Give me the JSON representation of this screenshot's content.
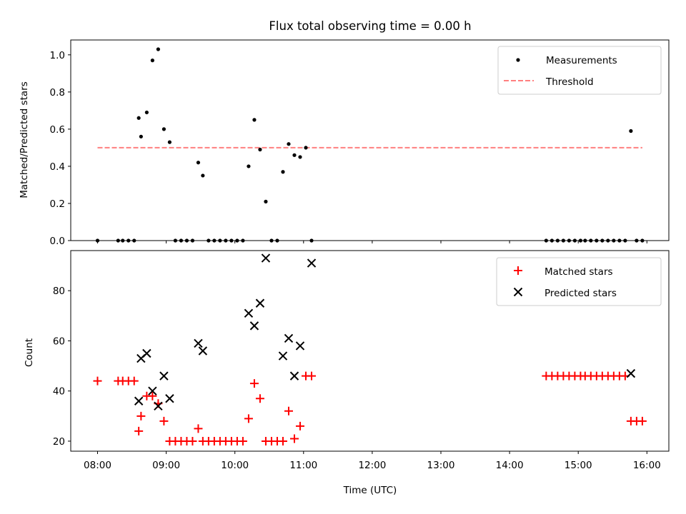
{
  "title": "Flux total observing time = 0.00 h",
  "chart_data": [
    {
      "type": "scatter",
      "ylabel": "Matched/Predicted stars",
      "ylim": [
        0,
        1.08
      ],
      "yticks": [
        "0.0",
        "0.2",
        "0.4",
        "0.6",
        "0.8",
        "1.0"
      ],
      "legend_placement": "top-right",
      "series": [
        {
          "name": "Measurements",
          "color": "#000000",
          "marker": "dot",
          "x": [
            "08:00",
            "08:18",
            "08:22",
            "08:27",
            "08:32",
            "08:36",
            "08:38",
            "08:43",
            "08:48",
            "08:53",
            "08:58",
            "09:03",
            "09:08",
            "09:13",
            "09:18",
            "09:23",
            "09:28",
            "09:32",
            "09:37",
            "09:42",
            "09:47",
            "09:52",
            "09:57",
            "10:02",
            "10:07",
            "10:12",
            "10:17",
            "10:22",
            "10:27",
            "10:32",
            "10:37",
            "10:42",
            "10:47",
            "10:52",
            "10:57",
            "11:02",
            "11:07",
            "14:32",
            "14:37",
            "14:42",
            "14:47",
            "14:52",
            "14:57",
            "15:02",
            "15:06",
            "15:11",
            "15:16",
            "15:21",
            "15:26",
            "15:31",
            "15:36",
            "15:41",
            "15:46",
            "15:51",
            "15:56"
          ],
          "values": [
            0.0,
            0.0,
            0.0,
            0.0,
            0.0,
            0.66,
            0.56,
            0.69,
            0.97,
            1.03,
            0.6,
            0.53,
            0.0,
            0.0,
            0.0,
            0.0,
            0.42,
            0.35,
            0.0,
            0.0,
            0.0,
            0.0,
            0.0,
            0.0,
            0.0,
            0.4,
            0.65,
            0.49,
            0.21,
            0.0,
            0.0,
            0.37,
            0.52,
            0.46,
            0.45,
            0.5,
            0.0,
            0.0,
            0.0,
            0.0,
            0.0,
            0.0,
            0.0,
            0.0,
            0.0,
            0.0,
            0.0,
            0.0,
            0.0,
            0.0,
            0.0,
            0.0,
            0.59,
            0.0,
            0.0
          ]
        },
        {
          "name": "Threshold",
          "color": "#ff7f7f",
          "linestyle": "dashed",
          "x": [
            "08:00",
            "15:56"
          ],
          "values": [
            0.5,
            0.5
          ]
        }
      ]
    },
    {
      "type": "scatter",
      "ylabel": "Count",
      "xlabel": "Time (UTC)",
      "ylim": [
        16,
        96
      ],
      "yticks": [
        "20",
        "40",
        "60",
        "80"
      ],
      "xticks": [
        "08:00",
        "09:00",
        "10:00",
        "11:00",
        "12:00",
        "13:00",
        "14:00",
        "15:00",
        "16:00"
      ],
      "legend_placement": "top-right",
      "series": [
        {
          "name": "Matched stars",
          "color": "#ff0000",
          "marker": "plus",
          "x": [
            "08:00",
            "08:18",
            "08:22",
            "08:27",
            "08:32",
            "08:36",
            "08:38",
            "08:43",
            "08:48",
            "08:53",
            "08:58",
            "09:03",
            "09:08",
            "09:13",
            "09:18",
            "09:23",
            "09:28",
            "09:32",
            "09:37",
            "09:42",
            "09:47",
            "09:52",
            "09:57",
            "10:02",
            "10:07",
            "10:12",
            "10:17",
            "10:22",
            "10:27",
            "10:32",
            "10:37",
            "10:42",
            "10:47",
            "10:52",
            "10:57",
            "11:02",
            "11:07",
            "14:32",
            "14:37",
            "14:42",
            "14:47",
            "14:52",
            "14:57",
            "15:02",
            "15:06",
            "15:11",
            "15:16",
            "15:21",
            "15:26",
            "15:31",
            "15:36",
            "15:41",
            "15:46",
            "15:51",
            "15:56"
          ],
          "values": [
            44,
            44,
            44,
            44,
            44,
            24,
            30,
            38,
            38,
            35,
            28,
            20,
            20,
            20,
            20,
            20,
            25,
            20,
            20,
            20,
            20,
            20,
            20,
            20,
            20,
            29,
            43,
            37,
            20,
            20,
            20,
            20,
            32,
            21,
            26,
            46,
            46,
            46,
            46,
            46,
            46,
            46,
            46,
            46,
            46,
            46,
            46,
            46,
            46,
            46,
            46,
            46,
            28,
            28,
            28
          ]
        },
        {
          "name": "Predicted stars",
          "color": "#000000",
          "marker": "x",
          "x": [
            "08:36",
            "08:38",
            "08:43",
            "08:48",
            "08:53",
            "08:58",
            "09:03",
            "09:28",
            "09:32",
            "10:12",
            "10:17",
            "10:22",
            "10:27",
            "10:42",
            "10:47",
            "10:52",
            "10:57",
            "11:07",
            "15:46"
          ],
          "values": [
            36,
            53,
            55,
            40,
            34,
            46,
            37,
            59,
            56,
            71,
            66,
            75,
            93,
            54,
            61,
            46,
            58,
            91,
            47
          ]
        }
      ]
    }
  ]
}
